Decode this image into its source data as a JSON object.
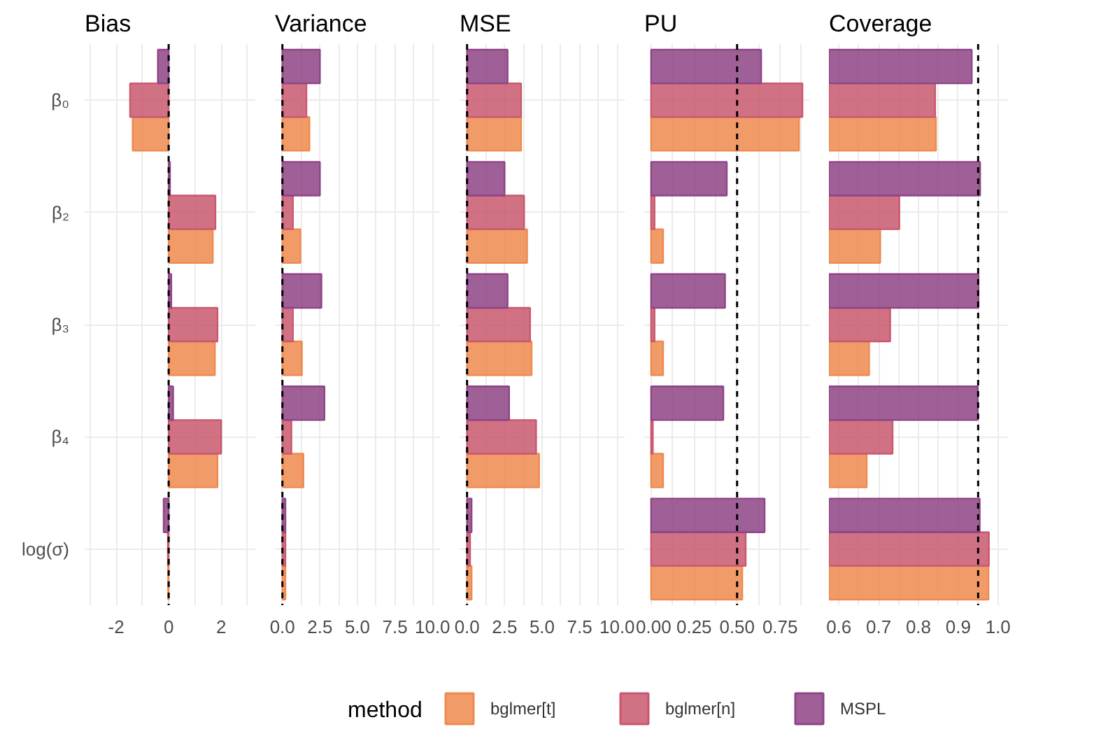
{
  "chart_data": [
    {
      "type": "bar",
      "orientation": "horizontal",
      "title": "Bias",
      "categories": [
        "β₀",
        "β₂",
        "β₃",
        "β₄",
        "log(σ)"
      ],
      "series": [
        {
          "name": "bglmer[t]",
          "color": "#ef8a4f",
          "values": [
            -1.37,
            1.68,
            1.76,
            1.86,
            -0.02
          ]
        },
        {
          "name": "bglmer[n]",
          "color": "#c9586f",
          "values": [
            -1.47,
            1.78,
            1.86,
            2.0,
            -0.03
          ]
        },
        {
          "name": "MSPL",
          "color": "#8e4485",
          "values": [
            -0.41,
            0.05,
            0.1,
            0.17,
            -0.19
          ]
        }
      ],
      "xlim": [
        -3.2,
        3.3
      ],
      "xticks": [
        {
          "value": -3,
          "label": null
        },
        -2,
        {
          "value": -1,
          "label": null
        },
        0,
        {
          "value": 1,
          "label": null
        },
        2,
        {
          "value": 3,
          "label": null
        }
      ],
      "ref_lines": [
        {
          "axis": "x",
          "value": 0,
          "line_style": "dashed",
          "color": "#000000"
        }
      ],
      "grid": true,
      "legend": "bottom",
      "legend_title": "method"
    },
    {
      "type": "bar",
      "orientation": "horizontal",
      "title": "Variance",
      "series": [
        {
          "color": "#ef8a4f",
          "values": [
            1.8,
            1.2,
            1.3,
            1.4,
            0.2
          ]
        },
        {
          "color": "#c9586f",
          "values": [
            1.6,
            0.7,
            0.7,
            0.6,
            0.2
          ]
        },
        {
          "color": "#8e4485",
          "values": [
            2.5,
            2.5,
            2.6,
            2.8,
            0.2
          ]
        }
      ],
      "xlim": [
        -0.5,
        10.5
      ],
      "xticks": [
        {
          "value": 0,
          "label": "0.0"
        },
        {
          "value": 1.25,
          "label": null
        },
        {
          "value": 2.5,
          "label": "2.5"
        },
        {
          "value": 3.75,
          "label": null
        },
        {
          "value": 5,
          "label": "5.0"
        },
        {
          "value": 6.25,
          "label": null
        },
        {
          "value": 7.5,
          "label": "7.5"
        },
        {
          "value": 8.75,
          "label": null
        },
        {
          "value": 10,
          "label": "10.0"
        }
      ],
      "ref_lines": [
        {
          "axis": "x",
          "value": 0,
          "line_style": "dashed",
          "color": "#000000"
        }
      ],
      "grid": true,
      "tick_labels": "x",
      "legend": false
    },
    {
      "type": "bar",
      "orientation": "horizontal",
      "title": "MSE",
      "series": [
        {
          "color": "#ef8a4f",
          "values": [
            3.6,
            4.0,
            4.3,
            4.8,
            0.3
          ]
        },
        {
          "color": "#c9586f",
          "values": [
            3.6,
            3.8,
            4.2,
            4.6,
            0.2
          ]
        },
        {
          "color": "#8e4485",
          "values": [
            2.7,
            2.5,
            2.7,
            2.8,
            0.3
          ]
        }
      ],
      "xlim": [
        -0.5,
        10.5
      ],
      "xticks": [
        {
          "value": 0,
          "label": "0.0"
        },
        {
          "value": 1.25,
          "label": null
        },
        {
          "value": 2.5,
          "label": "2.5"
        },
        {
          "value": 3.75,
          "label": null
        },
        {
          "value": 5,
          "label": "5.0"
        },
        {
          "value": 6.25,
          "label": null
        },
        {
          "value": 7.5,
          "label": "7.5"
        },
        {
          "value": 8.75,
          "label": null
        },
        {
          "value": 10,
          "label": "10.0"
        }
      ],
      "ref_lines": [
        {
          "axis": "x",
          "value": 0,
          "line_style": "dashed",
          "color": "#000000"
        }
      ],
      "grid": true,
      "tick_labels": "x",
      "legend": false
    },
    {
      "type": "bar",
      "orientation": "horizontal",
      "title": "PU",
      "series": [
        {
          "color": "#ef8a4f",
          "values": [
            0.86,
            0.07,
            0.07,
            0.07,
            0.53
          ]
        },
        {
          "color": "#c9586f",
          "values": [
            0.88,
            0.02,
            0.02,
            0.01,
            0.55
          ]
        },
        {
          "color": "#8e4485",
          "values": [
            0.64,
            0.44,
            0.43,
            0.42,
            0.66
          ]
        }
      ],
      "xlim": [
        -0.04,
        0.92
      ],
      "xticks": [
        {
          "value": 0,
          "label": "0.00"
        },
        {
          "value": 0.125,
          "label": null
        },
        0.25,
        {
          "value": 0.375,
          "label": null
        },
        {
          "value": 0.5,
          "label": "0.50"
        },
        {
          "value": 0.625,
          "label": null
        },
        0.75,
        {
          "value": 0.875,
          "label": null
        }
      ],
      "ref_lines": [
        {
          "axis": "x",
          "value": 0.5,
          "line_style": "dashed",
          "color": "#000000"
        }
      ],
      "grid": true,
      "tick_labels": "x",
      "legend": false
    },
    {
      "type": "bar",
      "orientation": "horizontal",
      "title": "Coverage",
      "series": [
        {
          "color": "#ef8a4f",
          "values": [
            0.844,
            0.704,
            0.676,
            0.67,
            0.976
          ]
        },
        {
          "color": "#c9586f",
          "values": [
            0.842,
            0.752,
            0.729,
            0.735,
            0.977
          ]
        },
        {
          "color": "#8e4485",
          "values": [
            0.934,
            0.955,
            0.951,
            0.949,
            0.954
          ]
        }
      ],
      "xlim": [
        0.575,
        1.025
      ],
      "xticks": [
        0.6,
        {
          "value": 0.65,
          "label": null
        },
        0.7,
        {
          "value": 0.75,
          "label": null
        },
        0.8,
        {
          "value": 0.85,
          "label": null
        },
        0.9,
        {
          "value": 0.95,
          "label": null
        },
        {
          "value": 1.0,
          "label": "1.0"
        }
      ],
      "ref_lines": [
        {
          "axis": "x",
          "value": 0.95,
          "line_style": "dashed",
          "color": "#000000"
        }
      ],
      "grid": true,
      "tick_labels": "x",
      "legend": false
    }
  ]
}
